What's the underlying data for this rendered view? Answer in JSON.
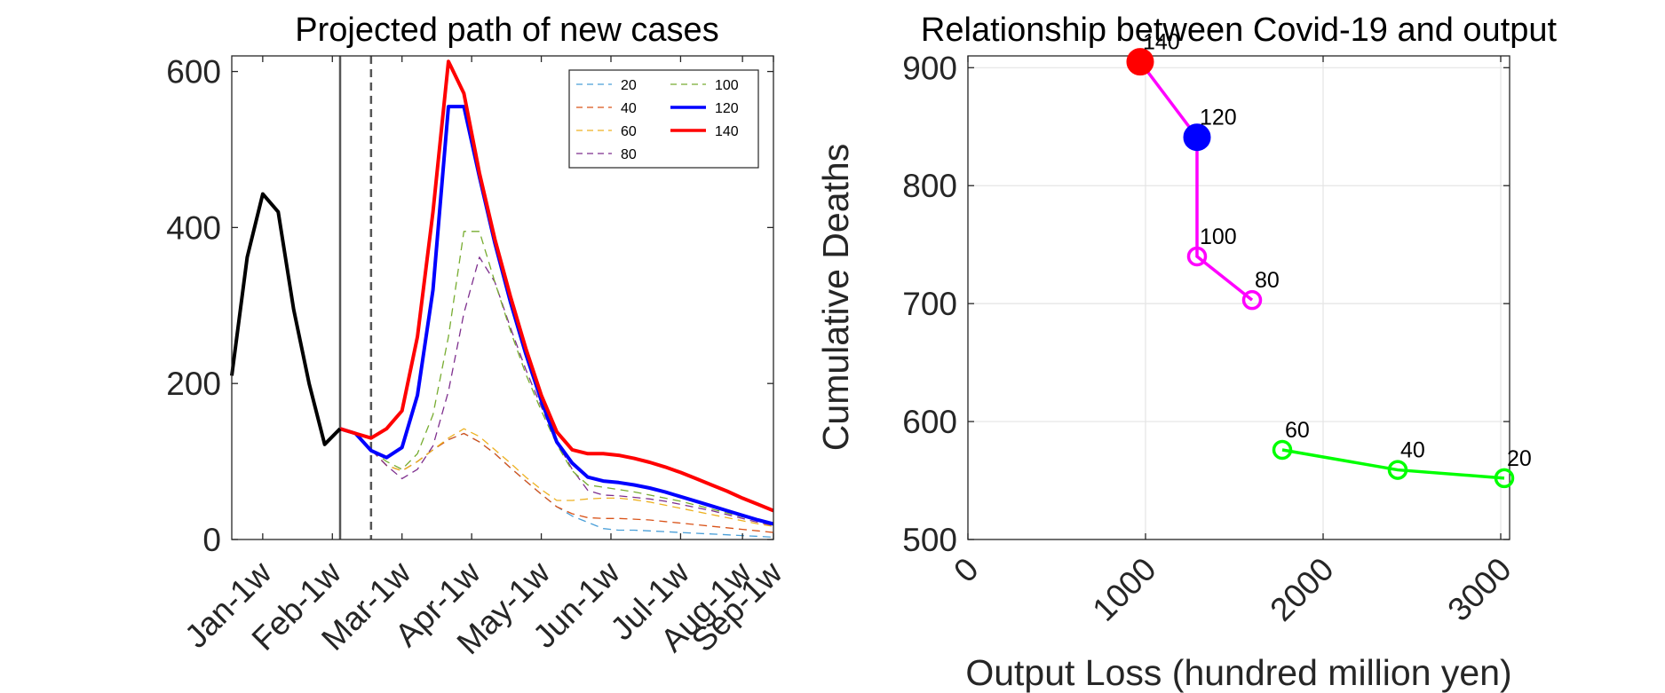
{
  "chart_data": [
    {
      "type": "line",
      "title": "Projected path of new cases",
      "xlabel": "",
      "ylabel": "",
      "ylim": [
        0,
        620
      ],
      "x_tick_labels": [
        "Jan-1w",
        "Feb-1w",
        "Mar-1w",
        "Apr-1w",
        "May-1w",
        "Jun-1w",
        "Jul-1w",
        "Aug-1w",
        "Sep-1w"
      ],
      "y_ticks": [
        0,
        200,
        400,
        600
      ],
      "legend_position": "top-right",
      "history": {
        "x": [
          0,
          1,
          2,
          3,
          4,
          5,
          6,
          7
        ],
        "values": [
          210,
          362,
          443,
          420,
          295,
          200,
          122,
          142
        ]
      },
      "vertical_lines": [
        {
          "x": 7,
          "style": "solid",
          "color": "#555555"
        },
        {
          "x": 9,
          "style": "dashed",
          "color": "#555555"
        }
      ],
      "projection_x": [
        7,
        8,
        9,
        10,
        11,
        12,
        13,
        14,
        15,
        16,
        17,
        18,
        19,
        20,
        21,
        22,
        23,
        24,
        25,
        26,
        27,
        28,
        29,
        30,
        31,
        32,
        33,
        34,
        35
      ],
      "series": [
        {
          "name": "20",
          "style": "dashed",
          "color": "#4a9fd8",
          "values": [
            142,
            136,
            115,
            95,
            88,
            100,
            115,
            128,
            136,
            125,
            110,
            92,
            75,
            58,
            42,
            30,
            22,
            14,
            12,
            12,
            11,
            10,
            9,
            8,
            7,
            6,
            5,
            4,
            3
          ]
        },
        {
          "name": "40",
          "style": "dashed",
          "color": "#d95319",
          "values": [
            142,
            136,
            115,
            95,
            88,
            100,
            115,
            128,
            136,
            125,
            110,
            92,
            75,
            58,
            42,
            33,
            28,
            27,
            27,
            26,
            25,
            23,
            21,
            19,
            17,
            15,
            13,
            11,
            9
          ]
        },
        {
          "name": "60",
          "style": "dashed",
          "color": "#edb120",
          "values": [
            142,
            136,
            115,
            95,
            88,
            100,
            115,
            130,
            142,
            132,
            115,
            98,
            80,
            64,
            50,
            50,
            52,
            53,
            53,
            51,
            48,
            44,
            40,
            36,
            32,
            28,
            24,
            20,
            17
          ]
        },
        {
          "name": "80",
          "style": "dashed",
          "color": "#7e2f8e",
          "values": [
            142,
            136,
            115,
            95,
            78,
            90,
            120,
            190,
            290,
            362,
            330,
            272,
            218,
            170,
            125,
            90,
            63,
            57,
            56,
            54,
            52,
            49,
            45,
            41,
            37,
            32,
            27,
            22,
            18
          ]
        },
        {
          "name": "100",
          "style": "dashed",
          "color": "#77ac30",
          "values": [
            142,
            136,
            115,
            100,
            90,
            110,
            160,
            260,
            395,
            395,
            330,
            268,
            212,
            165,
            122,
            88,
            70,
            67,
            64,
            61,
            57,
            53,
            49,
            44,
            39,
            34,
            29,
            24,
            20
          ]
        },
        {
          "name": "120",
          "style": "solid",
          "color": "#0000ff",
          "values": [
            142,
            136,
            114,
            105,
            118,
            185,
            320,
            555,
            555,
            465,
            380,
            305,
            238,
            178,
            125,
            98,
            80,
            75,
            73,
            70,
            66,
            61,
            55,
            49,
            43,
            37,
            31,
            25,
            20
          ]
        },
        {
          "name": "140",
          "style": "solid",
          "color": "#ff0000",
          "values": [
            142,
            136,
            130,
            142,
            165,
            260,
            420,
            613,
            572,
            470,
            385,
            312,
            245,
            185,
            138,
            115,
            110,
            110,
            108,
            104,
            99,
            93,
            86,
            78,
            70,
            62,
            53,
            45,
            37
          ]
        }
      ]
    },
    {
      "type": "scatter",
      "title": "Relationship between Covid-19 and output",
      "xlabel": "Output Loss (hundred million yen)",
      "ylabel": "Cumulative Deaths",
      "xlim": [
        0,
        3050
      ],
      "ylim": [
        500,
        910
      ],
      "x_ticks": [
        0,
        1000,
        2000,
        3000
      ],
      "y_ticks": [
        500,
        600,
        700,
        800,
        900
      ],
      "grid": true,
      "series": [
        {
          "name": "",
          "color": "#00ff00",
          "marker": "open-circle",
          "points": [
            {
              "x": 3020,
              "y": 552,
              "label": "20"
            },
            {
              "x": 2420,
              "y": 559,
              "label": "40"
            },
            {
              "x": 1770,
              "y": 576,
              "label": "60"
            }
          ]
        },
        {
          "name": "",
          "color": "#ff00ff",
          "marker": "open-circle",
          "points": [
            {
              "x": 1600,
              "y": 703,
              "label": "80"
            },
            {
              "x": 1290,
              "y": 740,
              "label": "100"
            }
          ]
        },
        {
          "name": "",
          "color": "#0000ff",
          "marker": "filled-circle",
          "points": [
            {
              "x": 1290,
              "y": 841,
              "label": "120"
            }
          ]
        },
        {
          "name": "",
          "color": "#ff0000",
          "marker": "filled-circle",
          "points": [
            {
              "x": 970,
              "y": 905,
              "label": "140"
            }
          ]
        }
      ],
      "connector_color": "#ff00ff"
    }
  ]
}
